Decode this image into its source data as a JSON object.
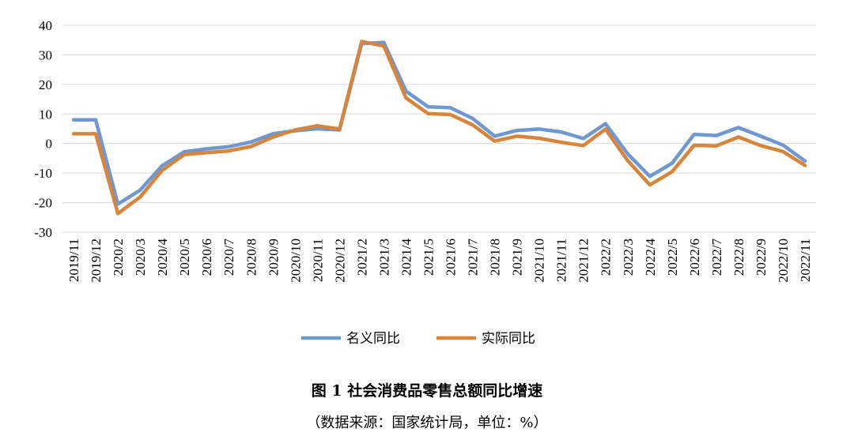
{
  "chart_data": {
    "type": "line",
    "title": "图 1 社会消费品零售总额同比增速",
    "subtitle": "（数据来源：国家统计局，单位：%）",
    "xlabel": "",
    "ylabel": "",
    "ylim": [
      -30,
      40
    ],
    "yticks": [
      40,
      30,
      20,
      10,
      0,
      -10,
      -20,
      -30
    ],
    "grid": true,
    "legend_position": "bottom",
    "categories": [
      "2019/11",
      "2019/12",
      "2020/2",
      "2020/3",
      "2020/4",
      "2020/5",
      "2020/6",
      "2020/7",
      "2020/8",
      "2020/9",
      "2020/10",
      "2020/11",
      "2020/12",
      "2021/2",
      "2021/3",
      "2021/4",
      "2021/5",
      "2021/6",
      "2021/7",
      "2021/8",
      "2021/9",
      "2021/10",
      "2021/11",
      "2021/12",
      "2022/2",
      "2022/3",
      "2022/4",
      "2022/5",
      "2022/6",
      "2022/7",
      "2022/8",
      "2022/9",
      "2022/10",
      "2022/11"
    ],
    "series": [
      {
        "name": "名义同比",
        "color": "#6f97d1",
        "values": [
          8.0,
          8.0,
          -20.5,
          -15.8,
          -7.5,
          -2.8,
          -1.8,
          -1.1,
          0.5,
          3.3,
          4.3,
          5.0,
          4.6,
          33.8,
          34.2,
          17.7,
          12.4,
          12.1,
          8.5,
          2.5,
          4.4,
          4.9,
          3.9,
          1.7,
          6.7,
          -3.5,
          -11.1,
          -6.7,
          3.1,
          2.7,
          5.4,
          2.5,
          -0.5,
          -5.9
        ]
      },
      {
        "name": "实际同比",
        "color": "#d8843a",
        "values": [
          3.3,
          3.3,
          -23.7,
          -18.1,
          -9.1,
          -3.7,
          -3.1,
          -2.5,
          -1.0,
          2.2,
          4.6,
          6.0,
          4.9,
          34.5,
          33.0,
          15.4,
          10.1,
          9.8,
          6.3,
          0.8,
          2.5,
          1.8,
          0.4,
          -0.7,
          4.9,
          -5.8,
          -14.0,
          -9.6,
          -0.6,
          -0.8,
          2.2,
          -0.7,
          -2.7,
          -7.4
        ]
      }
    ]
  }
}
